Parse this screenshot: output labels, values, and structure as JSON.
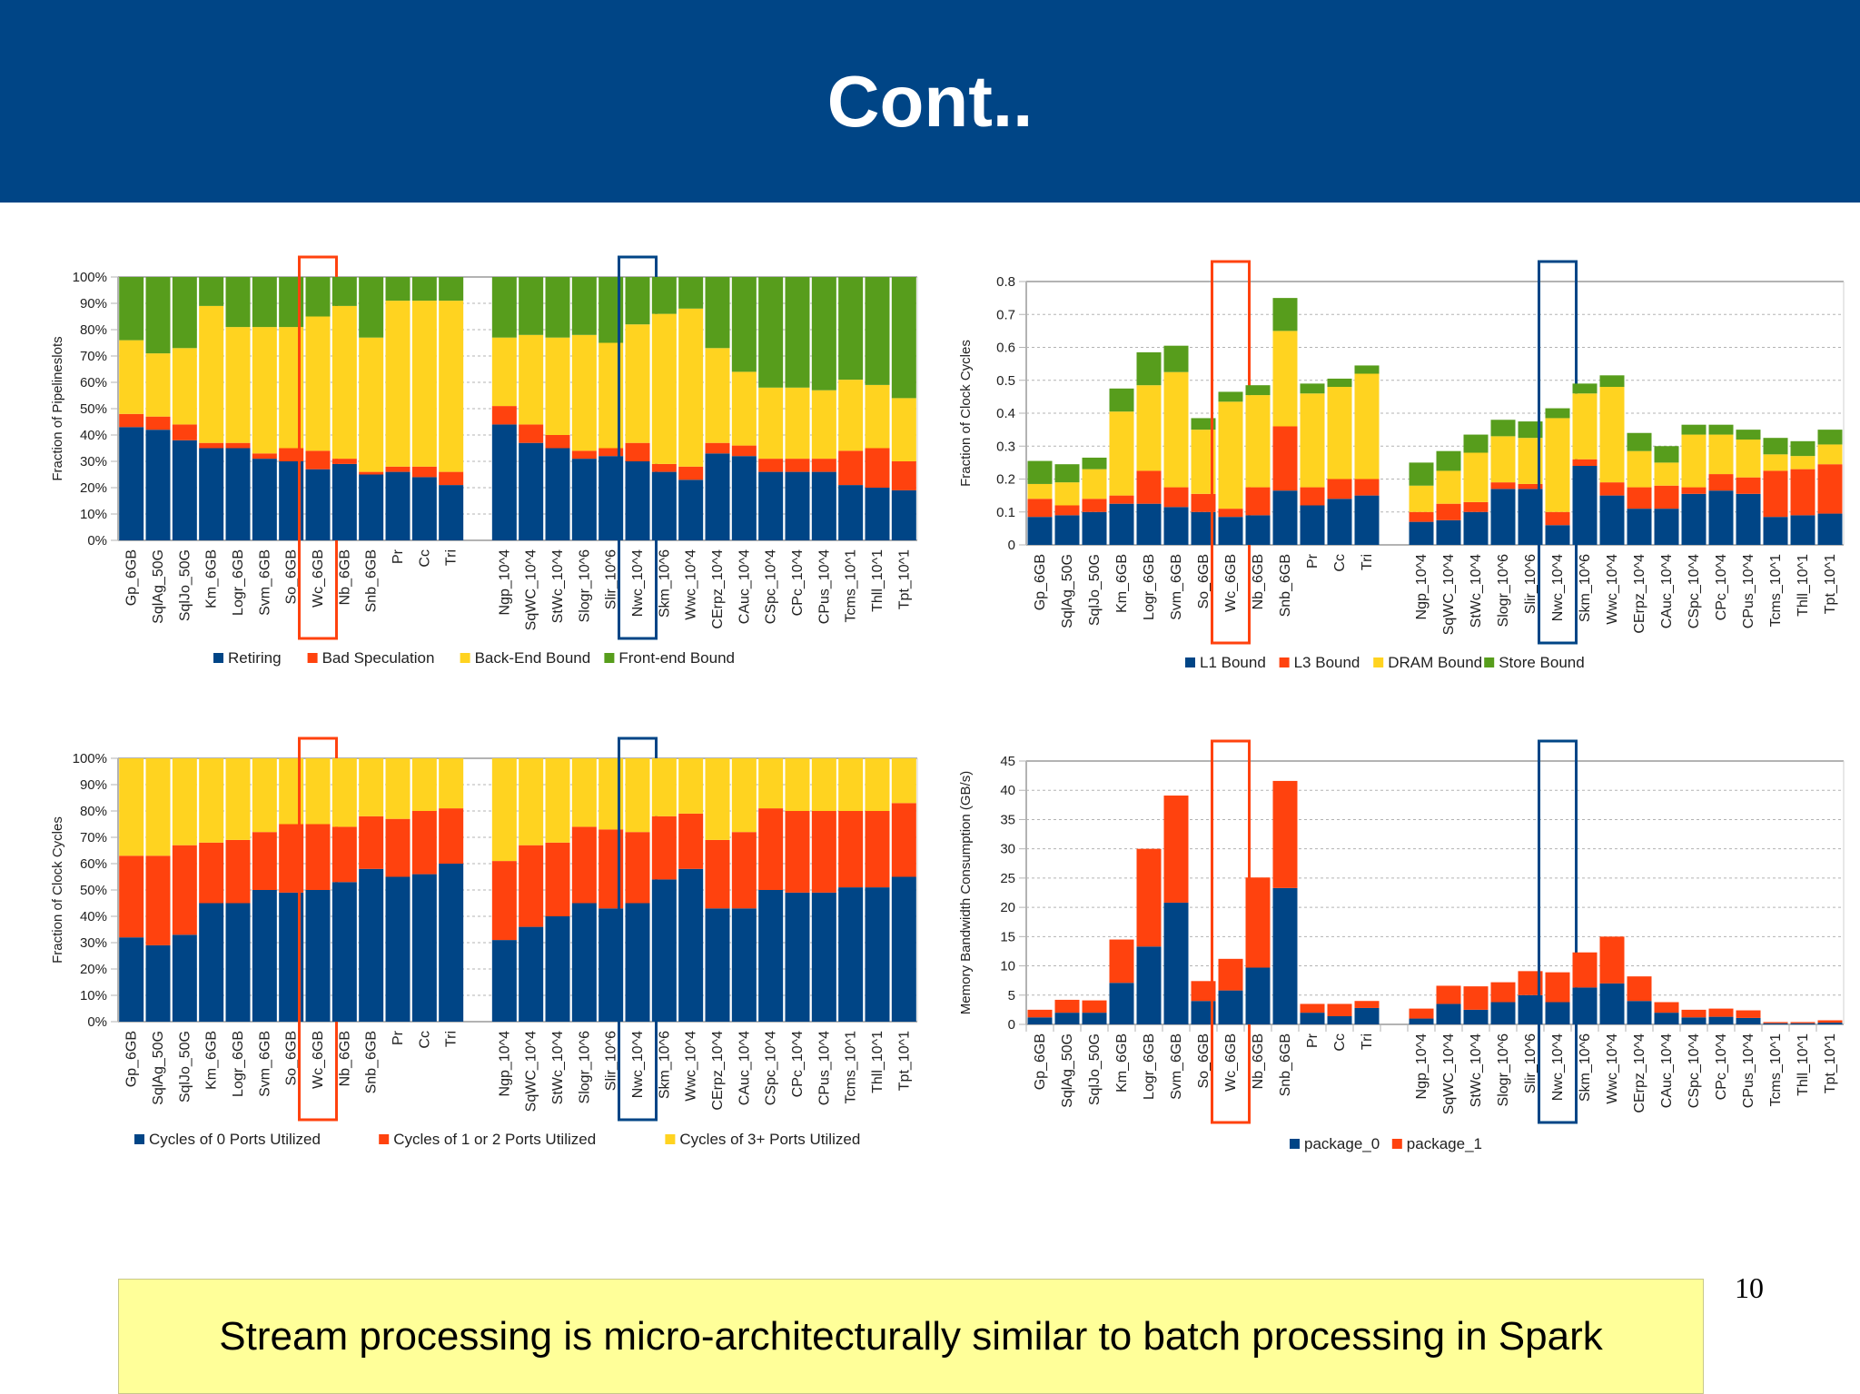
{
  "header": {
    "title": "Cont.."
  },
  "page_number": "10",
  "callout": {
    "text": "Stream processing is micro-architecturally similar to batch processing in Spark"
  },
  "colors": {
    "blue": "#004586",
    "orange": "#ff420e",
    "yellow": "#ffd320",
    "green": "#579d1c",
    "header_bg": "#004586",
    "callout_bg": "#ffff99"
  },
  "highlights": {
    "red_box_category": "Wc_6GB",
    "blue_box_category": "Nwc_10^4"
  },
  "chart_data": [
    {
      "id": "pipeline",
      "type": "bar",
      "stacked": true,
      "title": "",
      "ylabel": "Fraction of Pipelineslots",
      "ylim": [
        0,
        100
      ],
      "yticks": [
        "0%",
        "10%",
        "20%",
        "30%",
        "40%",
        "50%",
        "60%",
        "70%",
        "80%",
        "90%",
        "100%"
      ],
      "ytick_values": [
        0,
        10,
        20,
        30,
        40,
        50,
        60,
        70,
        80,
        90,
        100
      ],
      "grid": true,
      "legend_position": "bottom",
      "categories": [
        "Gp_6GB",
        "SqlAg_50G",
        "SqlJo_50G",
        "Km_6GB",
        "Logr_6GB",
        "Svm_6GB",
        "So_6GB",
        "Wc_6GB",
        "Nb_6GB",
        "Snb_6GB",
        "Pr",
        "Cc",
        "Tri",
        "",
        "Ngp_10^4",
        "SqWC_10^4",
        "StWc_10^4",
        "Slogr_10^6",
        "Slir_10^6",
        "Nwc_10^4",
        "Skm_10^6",
        "Wwc_10^4",
        "CErpz_10^4",
        "CAuc_10^4",
        "CSpc_10^4",
        "CPc_10^4",
        "CPus_10^4",
        "Tcms_10^1",
        "Thll_10^1",
        "Tpt_10^1"
      ],
      "series": [
        {
          "name": "Retiring",
          "color": "#004586",
          "values": [
            43,
            42,
            38,
            35,
            35,
            31,
            30,
            27,
            29,
            25,
            26,
            24,
            21,
            null,
            44,
            37,
            35,
            31,
            32,
            30,
            26,
            23,
            33,
            32,
            26,
            26,
            26,
            21,
            20,
            19
          ]
        },
        {
          "name": "Bad Speculation",
          "color": "#ff420e",
          "values": [
            5,
            5,
            6,
            2,
            2,
            2,
            5,
            7,
            2,
            1,
            2,
            4,
            5,
            null,
            7,
            7,
            5,
            3,
            3,
            7,
            3,
            5,
            4,
            4,
            5,
            5,
            5,
            13,
            15,
            11
          ]
        },
        {
          "name": "Back-End Bound",
          "color": "#ffd320",
          "values": [
            28,
            24,
            29,
            52,
            44,
            48,
            46,
            51,
            58,
            51,
            63,
            63,
            65,
            null,
            26,
            34,
            37,
            44,
            40,
            45,
            57,
            60,
            36,
            28,
            27,
            27,
            26,
            27,
            24,
            24
          ]
        },
        {
          "name": "Front-end Bound",
          "color": "#579d1c",
          "values": [
            24,
            29,
            27,
            11,
            19,
            19,
            19,
            15,
            11,
            23,
            9,
            9,
            9,
            null,
            23,
            22,
            23,
            22,
            25,
            18,
            14,
            12,
            27,
            36,
            42,
            42,
            43,
            39,
            41,
            46
          ]
        }
      ]
    },
    {
      "id": "memory-bound",
      "type": "bar",
      "stacked": true,
      "title": "",
      "ylabel": "Fraction of Clock Cycles",
      "ylim": [
        0,
        0.8
      ],
      "yticks": [
        "0",
        "0.1",
        "0.2",
        "0.3",
        "0.4",
        "0.5",
        "0.6",
        "0.7",
        "0.8"
      ],
      "ytick_values": [
        0,
        0.1,
        0.2,
        0.3,
        0.4,
        0.5,
        0.6,
        0.7,
        0.8
      ],
      "grid": true,
      "legend_position": "bottom",
      "categories": [
        "Gp_6GB",
        "SqlAg_50G",
        "SqlJo_50G",
        "Km_6GB",
        "Logr_6GB",
        "Svm_6GB",
        "So_6GB",
        "Wc_6GB",
        "Nb_6GB",
        "Snb_6GB",
        "Pr",
        "Cc",
        "Tri",
        "",
        "Ngp_10^4",
        "SqWC_10^4",
        "StWc_10^4",
        "Slogr_10^6",
        "Slir_10^6",
        "Nwc_10^4",
        "Skm_10^6",
        "Wwc_10^4",
        "CErpz_10^4",
        "CAuc_10^4",
        "CSpc_10^4",
        "CPc_10^4",
        "CPus_10^4",
        "Tcms_10^1",
        "Thll_10^1",
        "Tpt_10^1"
      ],
      "series": [
        {
          "name": "L1 Bound",
          "color": "#004586",
          "values": [
            0.085,
            0.09,
            0.1,
            0.125,
            0.125,
            0.115,
            0.1,
            0.085,
            0.09,
            0.165,
            0.12,
            0.14,
            0.15,
            null,
            0.07,
            0.075,
            0.1,
            0.17,
            0.17,
            0.06,
            0.24,
            0.15,
            0.11,
            0.11,
            0.155,
            0.165,
            0.155,
            0.085,
            0.09,
            0.095
          ]
        },
        {
          "name": "L3 Bound",
          "color": "#ff420e",
          "values": [
            0.055,
            0.03,
            0.04,
            0.025,
            0.1,
            0.06,
            0.055,
            0.025,
            0.085,
            0.195,
            0.055,
            0.06,
            0.05,
            null,
            0.03,
            0.05,
            0.03,
            0.02,
            0.015,
            0.04,
            0.02,
            0.04,
            0.065,
            0.07,
            0.02,
            0.05,
            0.05,
            0.14,
            0.14,
            0.15
          ]
        },
        {
          "name": "DRAM Bound",
          "color": "#ffd320",
          "values": [
            0.045,
            0.07,
            0.09,
            0.255,
            0.26,
            0.35,
            0.195,
            0.325,
            0.28,
            0.29,
            0.285,
            0.28,
            0.32,
            null,
            0.08,
            0.1,
            0.15,
            0.14,
            0.14,
            0.285,
            0.2,
            0.29,
            0.11,
            0.07,
            0.16,
            0.12,
            0.115,
            0.05,
            0.04,
            0.06
          ]
        },
        {
          "name": "Store Bound",
          "color": "#579d1c",
          "values": [
            0.07,
            0.055,
            0.035,
            0.07,
            0.1,
            0.08,
            0.035,
            0.03,
            0.03,
            0.1,
            0.03,
            0.025,
            0.025,
            null,
            0.07,
            0.06,
            0.055,
            0.05,
            0.05,
            0.03,
            0.03,
            0.035,
            0.055,
            0.05,
            0.03,
            0.03,
            0.03,
            0.05,
            0.045,
            0.045
          ]
        }
      ]
    },
    {
      "id": "ports",
      "type": "bar",
      "stacked": true,
      "title": "",
      "ylabel": "Fraction of Clock Cycles",
      "ylim": [
        0,
        100
      ],
      "yticks": [
        "0%",
        "10%",
        "20%",
        "30%",
        "40%",
        "50%",
        "60%",
        "70%",
        "80%",
        "90%",
        "100%"
      ],
      "ytick_values": [
        0,
        10,
        20,
        30,
        40,
        50,
        60,
        70,
        80,
        90,
        100
      ],
      "grid": true,
      "legend_position": "bottom",
      "categories": [
        "Gp_6GB",
        "SqlAg_50G",
        "SqlJo_50G",
        "Km_6GB",
        "Logr_6GB",
        "Svm_6GB",
        "So_6GB",
        "Wc_6GB",
        "Nb_6GB",
        "Snb_6GB",
        "Pr",
        "Cc",
        "Tri",
        "",
        "Ngp_10^4",
        "SqWC_10^4",
        "StWc_10^4",
        "Slogr_10^6",
        "Slir_10^6",
        "Nwc_10^4",
        "Skm_10^6",
        "Wwc_10^4",
        "CErpz_10^4",
        "CAuc_10^4",
        "CSpc_10^4",
        "CPc_10^4",
        "CPus_10^4",
        "Tcms_10^1",
        "Thll_10^1",
        "Tpt_10^1"
      ],
      "series": [
        {
          "name": "Cycles of 0 Ports Utilized",
          "color": "#004586",
          "values": [
            32,
            29,
            33,
            45,
            45,
            50,
            49,
            50,
            53,
            58,
            55,
            56,
            60,
            null,
            31,
            36,
            40,
            45,
            43,
            45,
            54,
            58,
            43,
            43,
            50,
            49,
            49,
            51,
            51,
            55
          ]
        },
        {
          "name": "Cycles of 1 or 2 Ports Utilized",
          "color": "#ff420e",
          "values": [
            31,
            34,
            34,
            23,
            24,
            22,
            26,
            25,
            21,
            20,
            22,
            24,
            21,
            null,
            30,
            31,
            28,
            29,
            30,
            27,
            24,
            21,
            26,
            29,
            31,
            31,
            31,
            29,
            29,
            28
          ]
        },
        {
          "name": "Cycles of 3+ Ports Utilized",
          "color": "#ffd320",
          "values": [
            37,
            37,
            33,
            32,
            31,
            28,
            25,
            25,
            26,
            22,
            23,
            20,
            19,
            null,
            39,
            33,
            32,
            26,
            27,
            28,
            22,
            21,
            31,
            28,
            19,
            20,
            20,
            20,
            20,
            17
          ]
        }
      ]
    },
    {
      "id": "bandwidth",
      "type": "bar",
      "stacked": true,
      "title": "",
      "ylabel": "Memory Bandwidth Consumption (GB/s)",
      "ylim": [
        0,
        45
      ],
      "yticks": [
        "0",
        "5",
        "10",
        "15",
        "20",
        "25",
        "30",
        "35",
        "40",
        "45"
      ],
      "ytick_values": [
        0,
        5,
        10,
        15,
        20,
        25,
        30,
        35,
        40,
        45
      ],
      "grid": true,
      "legend_position": "bottom",
      "categories": [
        "Gp_6GB",
        "SqlAg_50G",
        "SqlJo_50G",
        "Km_6GB",
        "Logr_6GB",
        "Svm_6GB",
        "So_6GB",
        "Wc_6GB",
        "Nb_6GB",
        "Snb_6GB",
        "Pr",
        "Cc",
        "Tri",
        "",
        "Ngp_10^4",
        "SqWC_10^4",
        "StWc_10^4",
        "Slogr_10^6",
        "Slir_10^6",
        "Nwc_10^4",
        "Skm_10^6",
        "Wwc_10^4",
        "CErpz_10^4",
        "CAuc_10^4",
        "CSpc_10^4",
        "CPc_10^4",
        "CPus_10^4",
        "Tcms_10^1",
        "Thll_10^1",
        "Tpt_10^1"
      ],
      "series": [
        {
          "name": "package_0",
          "color": "#004586",
          "values": [
            1.2,
            2.0,
            2.0,
            7.1,
            13.3,
            20.8,
            4.0,
            5.8,
            9.7,
            23.3,
            2.0,
            1.4,
            2.8,
            null,
            1.0,
            3.5,
            2.5,
            3.8,
            5.0,
            3.8,
            6.3,
            7.0,
            4.0,
            2.0,
            1.2,
            1.3,
            1.1,
            0.2,
            0.2,
            0.3
          ]
        },
        {
          "name": "package_1",
          "color": "#ff420e",
          "values": [
            1.3,
            2.2,
            2.1,
            7.4,
            16.7,
            18.3,
            3.4,
            5.4,
            15.4,
            18.3,
            1.5,
            2.1,
            1.2,
            null,
            1.7,
            3.1,
            4.0,
            3.4,
            4.1,
            5.1,
            6.0,
            8.0,
            4.2,
            1.8,
            1.3,
            1.4,
            1.3,
            0.2,
            0.2,
            0.4
          ]
        }
      ]
    }
  ]
}
